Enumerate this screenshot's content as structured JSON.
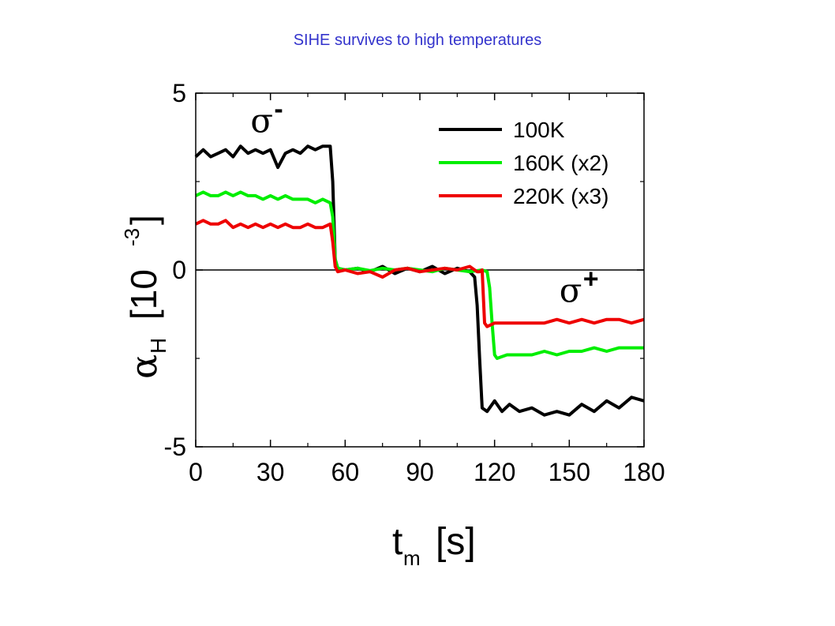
{
  "slide": {
    "title": "SIHE survives to high temperatures"
  },
  "chart_data": {
    "type": "line",
    "title": "",
    "xlabel": {
      "main": "t",
      "sub": "m",
      "unit": "[s]"
    },
    "ylabel": {
      "symbol": "α",
      "sub": "H",
      "bracket_open": "[10",
      "exp": "-3",
      "bracket_close": "]"
    },
    "xlim": [
      0,
      180
    ],
    "ylim": [
      -5,
      5
    ],
    "xticks": [
      0,
      30,
      60,
      90,
      120,
      150,
      180
    ],
    "xtick_labels": [
      "0",
      "30",
      "60",
      "90",
      "120",
      "150",
      "180"
    ],
    "yticks": [
      5,
      0,
      -5
    ],
    "ytick_labels": [
      "5",
      "0",
      "-5"
    ],
    "grid": false,
    "zero_line": true,
    "legend_position": "top-right",
    "annotations": [
      {
        "symbol": "σ",
        "sup": "-",
        "x": 22,
        "y": 3.9
      },
      {
        "symbol": "σ",
        "sup": "+",
        "x": 146,
        "y": -0.9
      }
    ],
    "series": [
      {
        "name": "100K",
        "color": "#000000",
        "x": [
          0,
          3,
          6,
          9,
          12,
          15,
          18,
          21,
          24,
          27,
          30,
          33,
          36,
          39,
          42,
          45,
          48,
          51,
          54,
          55,
          56,
          57,
          60,
          65,
          70,
          75,
          80,
          85,
          90,
          95,
          100,
          105,
          110,
          112,
          113,
          114,
          115,
          117,
          120,
          123,
          126,
          130,
          135,
          140,
          145,
          150,
          155,
          160,
          165,
          170,
          175,
          180
        ],
        "y": [
          3.2,
          3.4,
          3.2,
          3.3,
          3.4,
          3.2,
          3.5,
          3.3,
          3.4,
          3.3,
          3.4,
          2.9,
          3.3,
          3.4,
          3.3,
          3.5,
          3.4,
          3.5,
          3.5,
          2.5,
          0.3,
          0.05,
          0.0,
          0.05,
          -0.05,
          0.1,
          -0.1,
          0.05,
          -0.05,
          0.1,
          -0.1,
          0.05,
          -0.05,
          -0.2,
          -1.0,
          -2.5,
          -3.9,
          -4.0,
          -3.7,
          -4.0,
          -3.8,
          -4.0,
          -3.9,
          -4.1,
          -4.0,
          -4.1,
          -3.8,
          -4.0,
          -3.7,
          -3.9,
          -3.6,
          -3.7
        ]
      },
      {
        "name": "160K (x2)",
        "color": "#00ee00",
        "x": [
          0,
          3,
          6,
          9,
          12,
          15,
          18,
          21,
          24,
          27,
          30,
          33,
          36,
          39,
          42,
          45,
          48,
          51,
          54,
          55,
          56,
          57,
          60,
          65,
          70,
          75,
          80,
          85,
          90,
          95,
          100,
          105,
          110,
          115,
          117,
          118,
          119,
          120,
          121,
          125,
          130,
          135,
          140,
          145,
          150,
          155,
          160,
          165,
          170,
          175,
          180
        ],
        "y": [
          2.1,
          2.2,
          2.1,
          2.1,
          2.2,
          2.1,
          2.2,
          2.1,
          2.1,
          2.0,
          2.1,
          2.0,
          2.1,
          2.0,
          2.0,
          2.0,
          1.9,
          2.0,
          1.9,
          1.5,
          0.3,
          0.05,
          0.0,
          0.05,
          -0.02,
          0.05,
          0.0,
          0.05,
          0.0,
          -0.05,
          0.05,
          0.0,
          -0.05,
          0.0,
          -0.05,
          -0.5,
          -1.5,
          -2.4,
          -2.5,
          -2.4,
          -2.4,
          -2.4,
          -2.3,
          -2.4,
          -2.3,
          -2.3,
          -2.2,
          -2.3,
          -2.2,
          -2.2,
          -2.2
        ]
      },
      {
        "name": "220K (x3)",
        "color": "#ee0000",
        "x": [
          0,
          3,
          6,
          9,
          12,
          15,
          18,
          21,
          24,
          27,
          30,
          33,
          36,
          39,
          42,
          45,
          48,
          51,
          54,
          55,
          56,
          57,
          60,
          65,
          70,
          75,
          80,
          85,
          90,
          95,
          100,
          105,
          110,
          112,
          113,
          114,
          115,
          116,
          117,
          120,
          125,
          130,
          135,
          140,
          145,
          150,
          155,
          160,
          165,
          170,
          175,
          180
        ],
        "y": [
          1.3,
          1.4,
          1.3,
          1.3,
          1.4,
          1.2,
          1.3,
          1.2,
          1.3,
          1.2,
          1.3,
          1.2,
          1.3,
          1.2,
          1.2,
          1.3,
          1.2,
          1.2,
          1.3,
          0.8,
          0.1,
          -0.05,
          0.0,
          -0.1,
          -0.05,
          -0.2,
          0.0,
          0.05,
          -0.05,
          0.0,
          0.05,
          0.0,
          0.1,
          0.0,
          -0.05,
          -0.05,
          0.0,
          -1.5,
          -1.6,
          -1.5,
          -1.5,
          -1.5,
          -1.5,
          -1.5,
          -1.4,
          -1.5,
          -1.4,
          -1.5,
          -1.4,
          -1.4,
          -1.5,
          -1.4
        ]
      }
    ]
  }
}
